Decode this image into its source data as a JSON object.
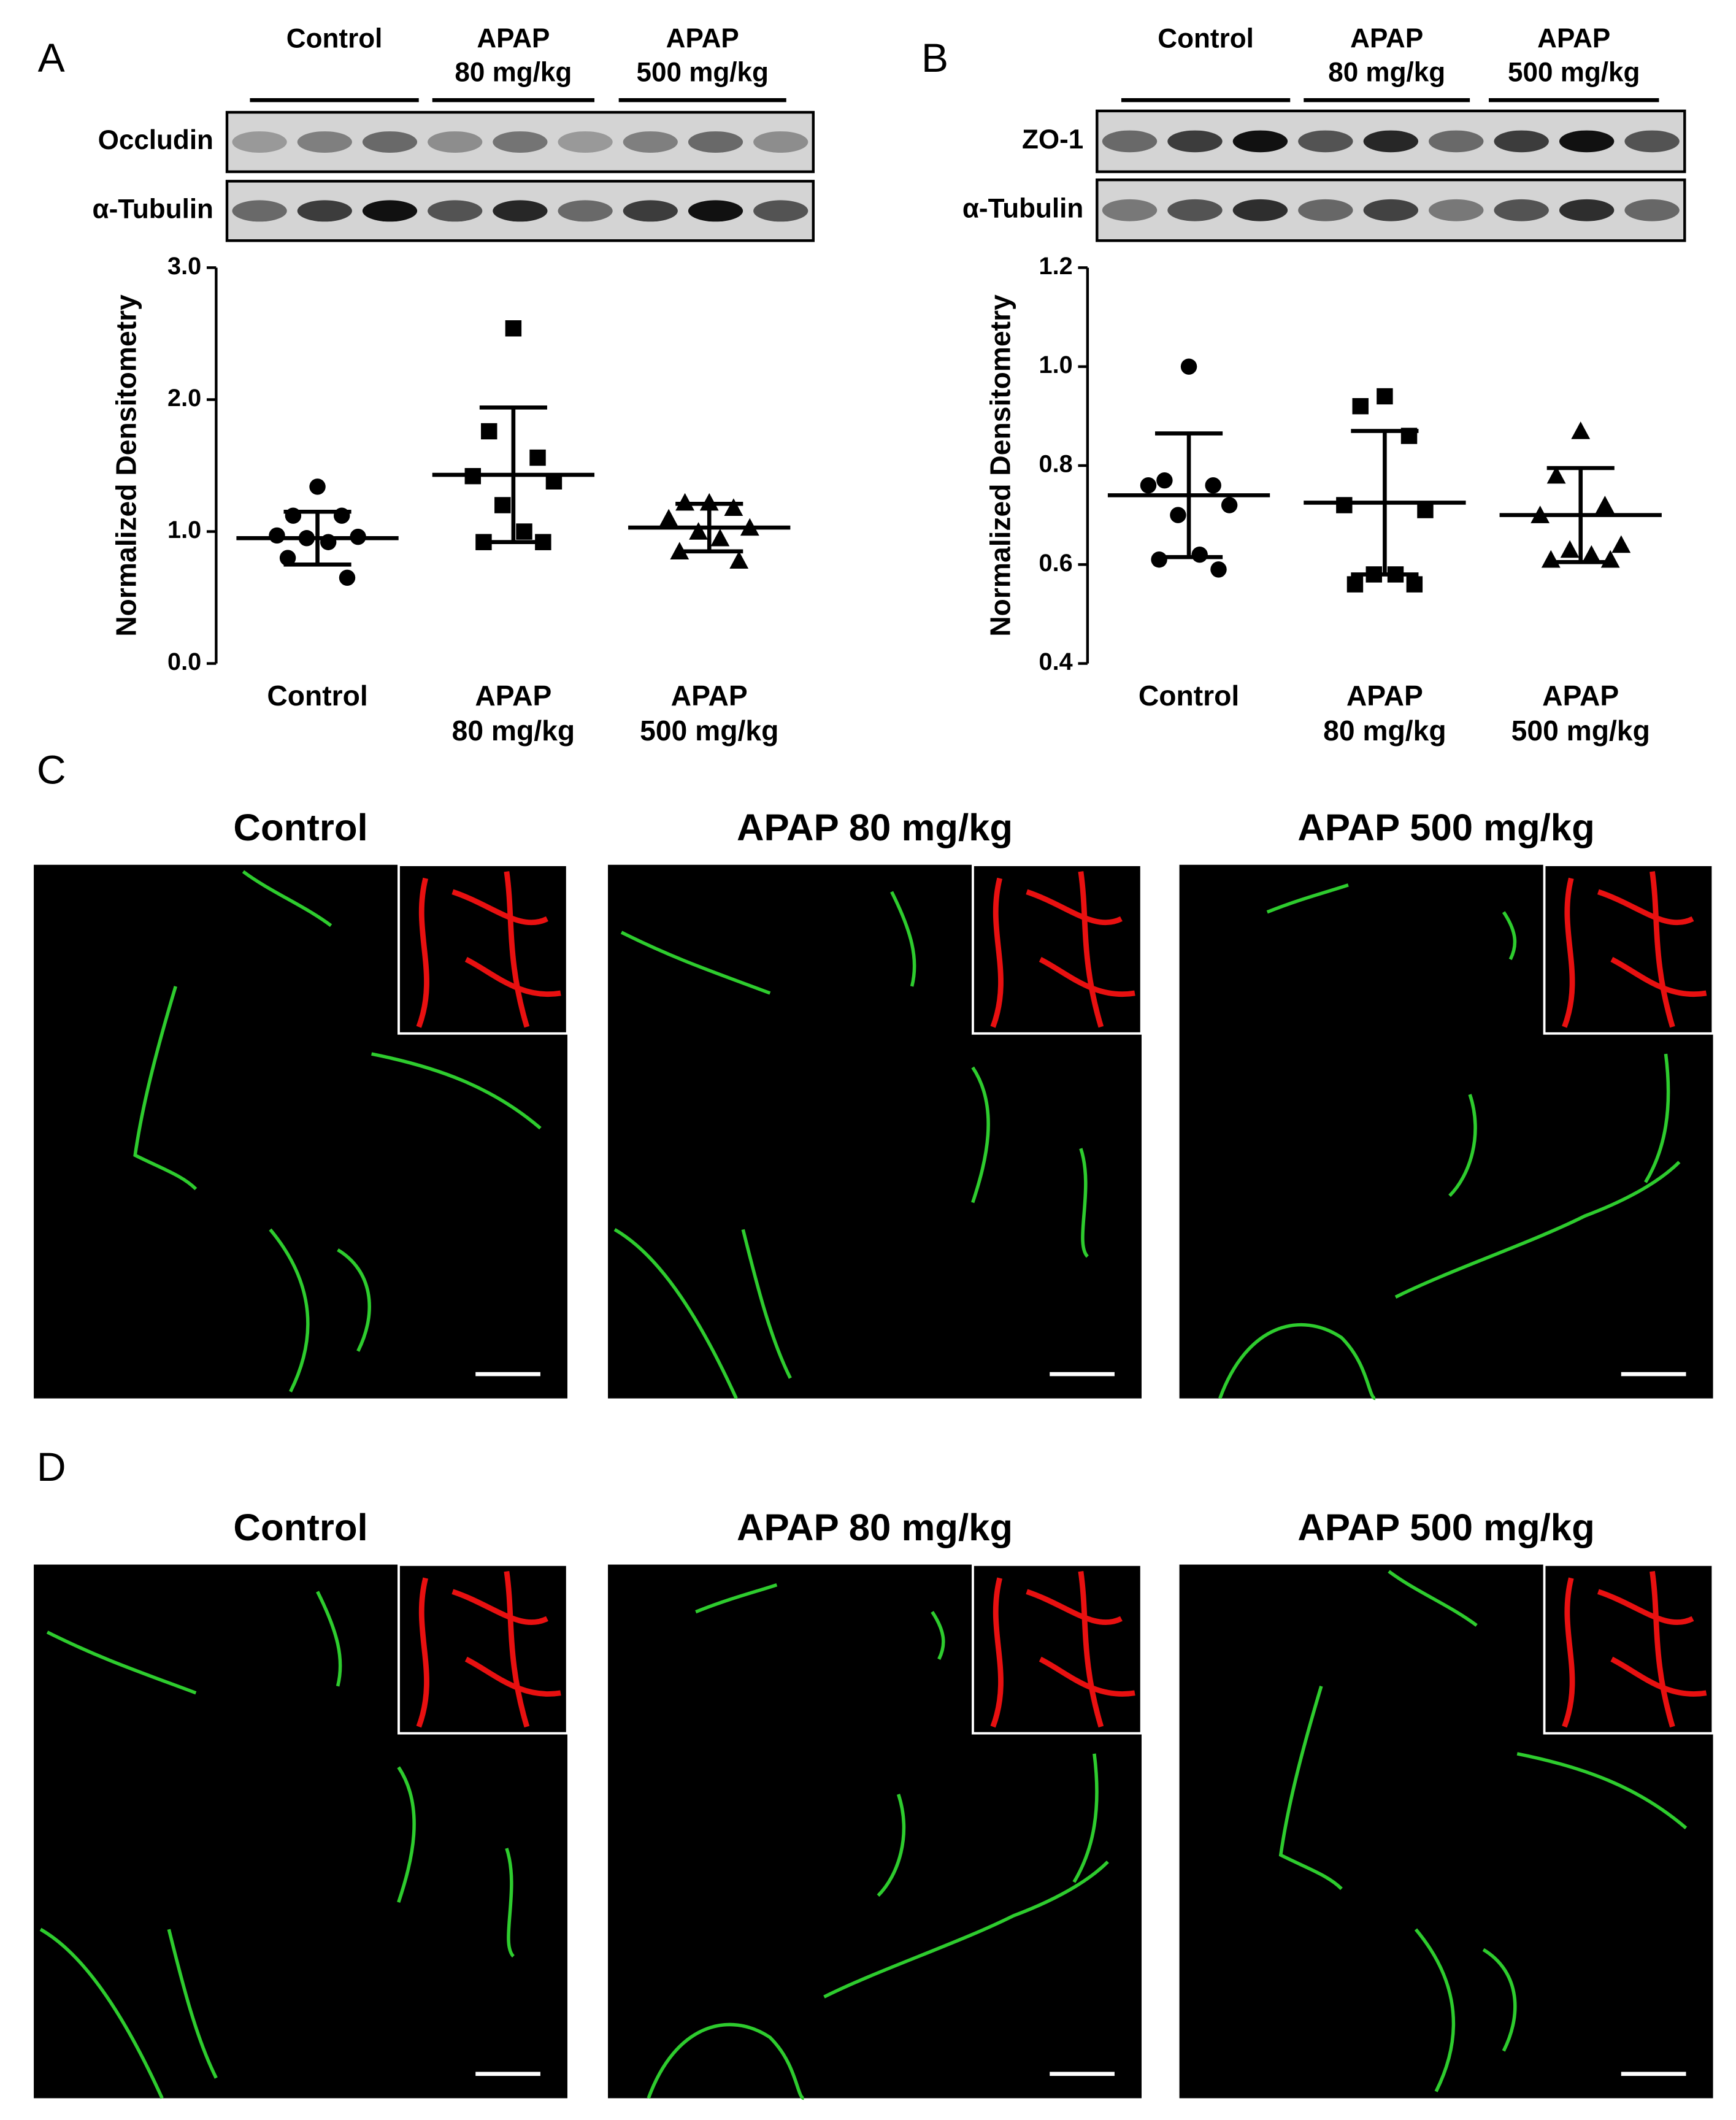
{
  "panel_labels": [
    "A",
    "B",
    "C",
    "D"
  ],
  "blots": [
    {
      "groups": [
        "Control",
        "APAP\n80 mg/kg",
        "APAP\n500 mg/kg"
      ],
      "rows": [
        "Occludin",
        "α-Tubulin"
      ]
    },
    {
      "groups": [
        "Control",
        "APAP\n80 mg/kg",
        "APAP\n500 mg/kg"
      ],
      "rows": [
        "ZO-1",
        "α-Tubulin"
      ]
    }
  ],
  "chart_data": [
    {
      "type": "dotplot",
      "y_label": "Normalized Densitometry",
      "categories": [
        "Control",
        "APAP\n80 mg/kg",
        "APAP\n500 mg/kg"
      ],
      "markers": [
        "circle",
        "square",
        "triangle"
      ],
      "color": "#000000",
      "values": [
        [
          1.34,
          1.12,
          1.12,
          0.97,
          0.96,
          0.95,
          0.92,
          0.8,
          0.65
        ],
        [
          2.54,
          1.76,
          1.56,
          1.42,
          1.38,
          1.2,
          1.0,
          0.92,
          0.92
        ],
        [
          1.22,
          1.22,
          1.18,
          1.1,
          1.03,
          1.0,
          0.95,
          0.85,
          0.78
        ]
      ],
      "means": [
        0.95,
        1.43,
        1.03
      ],
      "sd": [
        0.2,
        0.51,
        0.18
      ],
      "ylim": [
        0,
        3
      ],
      "yticks": [
        {
          "value": 0,
          "label": "0.0"
        },
        {
          "value": 1,
          "label": "1.0"
        },
        {
          "value": 2,
          "label": "2.0"
        },
        {
          "value": 3,
          "label": "3.0"
        }
      ]
    },
    {
      "type": "dotplot",
      "y_label": "Normalized Densitometry",
      "categories": [
        "Control",
        "APAP\n80 mg/kg",
        "APAP\n500 mg/kg"
      ],
      "markers": [
        "circle",
        "square",
        "triangle"
      ],
      "color": "#000000",
      "values": [
        [
          1.0,
          0.77,
          0.76,
          0.76,
          0.72,
          0.7,
          0.62,
          0.61,
          0.59
        ],
        [
          0.94,
          0.92,
          0.86,
          0.72,
          0.71,
          0.58,
          0.58,
          0.56,
          0.56
        ],
        [
          0.87,
          0.78,
          0.72,
          0.7,
          0.64,
          0.63,
          0.62,
          0.61,
          0.61
        ]
      ],
      "means": [
        0.74,
        0.725,
        0.7
      ],
      "sd": [
        0.125,
        0.145,
        0.095
      ],
      "ylim": [
        0.4,
        1.2
      ],
      "yticks": [
        0.4,
        0.6,
        0.8,
        {
          "value": 1,
          "label": "1.0"
        },
        1.2
      ]
    }
  ],
  "images": [
    {
      "titles": [
        "Control",
        "APAP 80 mg/kg",
        "APAP 500 mg/kg"
      ]
    },
    {
      "titles": [
        "Control",
        "APAP 80 mg/kg",
        "APAP 500 mg/kg"
      ]
    }
  ]
}
